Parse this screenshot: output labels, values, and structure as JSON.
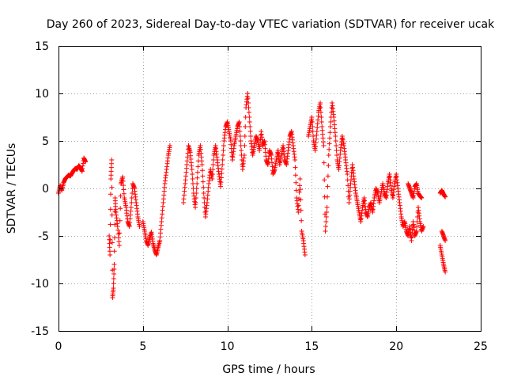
{
  "chart_data": {
    "type": "scatter",
    "title": "Day 260 of 2023, Sidereal Day-to-day VTEC variation (SDTVAR) for receiver ucak",
    "xlabel": "GPS time / hours",
    "ylabel": "SDTVAR / TECUs",
    "xlim": [
      0,
      25
    ],
    "ylim": [
      -15,
      15
    ],
    "xticks": [
      0,
      5,
      10,
      15,
      20,
      25
    ],
    "yticks": [
      -15,
      -10,
      -5,
      0,
      5,
      10,
      15
    ],
    "grid": true,
    "marker": "plus",
    "series": [
      {
        "name": "SDTVAR",
        "color": "#ff0000",
        "segments": [
          [
            [
              0.0,
              -0.5
            ],
            [
              0.1,
              0.3
            ],
            [
              0.2,
              -0.2
            ],
            [
              0.3,
              0.6
            ],
            [
              0.4,
              1.0
            ],
            [
              0.5,
              1.2
            ],
            [
              0.6,
              1.4
            ],
            [
              0.7,
              1.3
            ],
            [
              0.8,
              1.6
            ],
            [
              0.9,
              1.9
            ],
            [
              1.0,
              2.1
            ],
            [
              1.1,
              2.0
            ],
            [
              1.2,
              2.4
            ],
            [
              1.3,
              2.2
            ],
            [
              1.4,
              1.8
            ],
            [
              1.5,
              3.2
            ],
            [
              1.6,
              2.8
            ]
          ],
          [
            [
              3.0,
              -5.0
            ],
            [
              3.05,
              -7.0
            ],
            [
              3.1,
              1.0
            ],
            [
              3.15,
              3.0
            ],
            [
              3.2,
              -11.5
            ],
            [
              3.25,
              -10.5
            ],
            [
              3.3,
              -8.0
            ],
            [
              3.35,
              -1.0
            ],
            [
              3.4,
              -2.5
            ],
            [
              3.5,
              -4.0
            ],
            [
              3.6,
              -6.0
            ],
            [
              3.7,
              0.5
            ],
            [
              3.8,
              1.2
            ],
            [
              3.9,
              -1.0
            ],
            [
              4.0,
              -2.0
            ],
            [
              4.1,
              -3.5
            ],
            [
              4.2,
              -4.0
            ],
            [
              4.3,
              -2.0
            ],
            [
              4.4,
              0.5
            ],
            [
              4.5,
              0.0
            ],
            [
              4.6,
              -1.5
            ],
            [
              4.7,
              -3.0
            ],
            [
              4.8,
              -4.0
            ]
          ],
          [
            [
              5.0,
              -3.5
            ],
            [
              5.1,
              -4.5
            ],
            [
              5.2,
              -5.5
            ],
            [
              5.3,
              -6.0
            ],
            [
              5.4,
              -5.2
            ],
            [
              5.5,
              -4.6
            ],
            [
              5.6,
              -5.8
            ],
            [
              5.7,
              -6.5
            ],
            [
              5.8,
              -7.0
            ],
            [
              5.9,
              -6.2
            ],
            [
              6.0,
              -5.5
            ],
            [
              6.1,
              -3.5
            ],
            [
              6.2,
              -1.5
            ],
            [
              6.3,
              0.5
            ],
            [
              6.4,
              2.0
            ],
            [
              6.5,
              3.5
            ],
            [
              6.6,
              4.5
            ]
          ],
          [
            [
              7.4,
              -1.5
            ],
            [
              7.5,
              0.5
            ],
            [
              7.6,
              2.5
            ],
            [
              7.7,
              4.5
            ],
            [
              7.8,
              3.8
            ],
            [
              7.9,
              2.0
            ],
            [
              8.0,
              -0.5
            ],
            [
              8.1,
              -2.0
            ],
            [
              8.2,
              0.5
            ],
            [
              8.3,
              3.5
            ],
            [
              8.4,
              4.5
            ],
            [
              8.5,
              2.5
            ],
            [
              8.6,
              -0.5
            ],
            [
              8.7,
              -3.0
            ],
            [
              8.8,
              -1.5
            ],
            [
              8.9,
              0.5
            ],
            [
              9.0,
              2.0
            ],
            [
              9.1,
              1.0
            ],
            [
              9.2,
              3.5
            ],
            [
              9.3,
              4.5
            ],
            [
              9.4,
              3.0
            ],
            [
              9.5,
              1.5
            ],
            [
              9.6,
              0.2
            ],
            [
              9.7,
              2.5
            ],
            [
              9.8,
              5.0
            ],
            [
              9.9,
              6.5
            ],
            [
              10.0,
              7.0
            ],
            [
              10.1,
              6.0
            ],
            [
              10.2,
              5.0
            ],
            [
              10.3,
              3.0
            ],
            [
              10.4,
              4.5
            ],
            [
              10.5,
              5.5
            ],
            [
              10.6,
              6.5
            ],
            [
              10.7,
              7.0
            ],
            [
              10.8,
              4.5
            ],
            [
              10.9,
              2.0
            ],
            [
              11.0,
              3.5
            ],
            [
              11.1,
              8.5
            ],
            [
              11.2,
              10.0
            ],
            [
              11.3,
              7.5
            ],
            [
              11.4,
              5.0
            ],
            [
              11.5,
              3.5
            ],
            [
              11.6,
              4.5
            ],
            [
              11.7,
              5.5
            ],
            [
              11.8,
              5.0
            ],
            [
              11.9,
              4.0
            ],
            [
              12.0,
              6.0
            ],
            [
              12.1,
              4.5
            ],
            [
              12.2,
              5.0
            ],
            [
              12.3,
              3.0
            ],
            [
              12.4,
              2.5
            ],
            [
              12.5,
              4.0
            ],
            [
              12.6,
              3.5
            ],
            [
              12.7,
              1.5
            ],
            [
              12.8,
              2.0
            ],
            [
              12.9,
              3.0
            ],
            [
              13.0,
              4.0
            ],
            [
              13.1,
              2.5
            ],
            [
              13.2,
              3.5
            ],
            [
              13.3,
              4.5
            ],
            [
              13.4,
              3.0
            ],
            [
              13.5,
              2.5
            ],
            [
              13.6,
              4.0
            ],
            [
              13.7,
              5.5
            ],
            [
              13.8,
              6.0
            ],
            [
              13.9,
              4.5
            ],
            [
              14.0,
              3.0
            ],
            [
              14.1,
              -1.0
            ],
            [
              14.2,
              -2.5
            ],
            [
              14.3,
              1.0
            ],
            [
              14.4,
              -4.5
            ],
            [
              14.5,
              -5.5
            ],
            [
              14.6,
              -7.0
            ]
          ],
          [
            [
              14.8,
              5.5
            ],
            [
              14.9,
              6.5
            ],
            [
              15.0,
              7.5
            ],
            [
              15.1,
              5.0
            ],
            [
              15.2,
              4.0
            ],
            [
              15.3,
              6.0
            ],
            [
              15.4,
              8.0
            ],
            [
              15.5,
              9.0
            ],
            [
              15.6,
              6.5
            ],
            [
              15.7,
              4.5
            ],
            [
              15.8,
              -4.5
            ],
            [
              15.9,
              -2.0
            ],
            [
              16.0,
              3.5
            ],
            [
              16.1,
              6.5
            ],
            [
              16.2,
              9.0
            ],
            [
              16.3,
              7.5
            ],
            [
              16.4,
              5.5
            ],
            [
              16.5,
              3.0
            ],
            [
              16.6,
              2.0
            ],
            [
              16.7,
              4.0
            ],
            [
              16.8,
              5.5
            ],
            [
              16.9,
              4.5
            ],
            [
              17.0,
              3.0
            ],
            [
              17.1,
              1.5
            ],
            [
              17.2,
              -1.5
            ],
            [
              17.3,
              0.5
            ],
            [
              17.4,
              2.5
            ],
            [
              17.5,
              1.0
            ],
            [
              17.6,
              -0.5
            ],
            [
              17.7,
              -1.5
            ],
            [
              17.8,
              -2.5
            ],
            [
              17.9,
              -3.5
            ],
            [
              18.0,
              -2.0
            ],
            [
              18.1,
              -1.0
            ],
            [
              18.2,
              -2.5
            ],
            [
              18.3,
              -3.0
            ],
            [
              18.4,
              -2.0
            ],
            [
              18.5,
              -1.5
            ],
            [
              18.6,
              -2.5
            ],
            [
              18.7,
              -1.0
            ],
            [
              18.8,
              0.0
            ],
            [
              18.9,
              -0.5
            ],
            [
              19.0,
              -1.5
            ],
            [
              19.1,
              -0.5
            ],
            [
              19.2,
              0.5
            ],
            [
              19.3,
              -0.5
            ],
            [
              19.4,
              -1.0
            ],
            [
              19.5,
              0.5
            ],
            [
              19.6,
              1.5
            ],
            [
              19.7,
              0.0
            ],
            [
              19.8,
              -1.0
            ],
            [
              19.9,
              0.5
            ],
            [
              20.0,
              1.5
            ],
            [
              20.1,
              0.0
            ],
            [
              20.2,
              -1.5
            ],
            [
              20.3,
              -3.0
            ],
            [
              20.4,
              -4.0
            ],
            [
              20.5,
              -3.5
            ],
            [
              20.6,
              -4.5
            ],
            [
              20.7,
              -5.0
            ],
            [
              20.8,
              -4.0
            ],
            [
              20.9,
              -5.5
            ],
            [
              21.0,
              -3.5
            ],
            [
              21.1,
              -5.0
            ],
            [
              21.2,
              -4.5
            ],
            [
              21.3,
              -2.0
            ],
            [
              21.4,
              -3.5
            ],
            [
              21.5,
              -4.5
            ],
            [
              21.6,
              -4.0
            ]
          ],
          [
            [
              20.7,
              0.5
            ],
            [
              20.8,
              0.0
            ],
            [
              20.9,
              -0.5
            ],
            [
              21.0,
              -1.0
            ],
            [
              21.1,
              0.2
            ],
            [
              21.2,
              0.5
            ],
            [
              21.3,
              -0.5
            ],
            [
              21.4,
              -0.8
            ],
            [
              21.5,
              -1.0
            ]
          ],
          [
            [
              22.6,
              -0.5
            ],
            [
              22.7,
              -0.2
            ],
            [
              22.8,
              -0.6
            ],
            [
              22.9,
              -0.9
            ]
          ],
          [
            [
              22.6,
              -6.0
            ],
            [
              22.7,
              -7.0
            ],
            [
              22.8,
              -8.0
            ],
            [
              22.9,
              -8.8
            ]
          ],
          [
            [
              22.7,
              -4.5
            ],
            [
              22.8,
              -5.0
            ],
            [
              22.9,
              -5.5
            ]
          ]
        ]
      }
    ]
  }
}
